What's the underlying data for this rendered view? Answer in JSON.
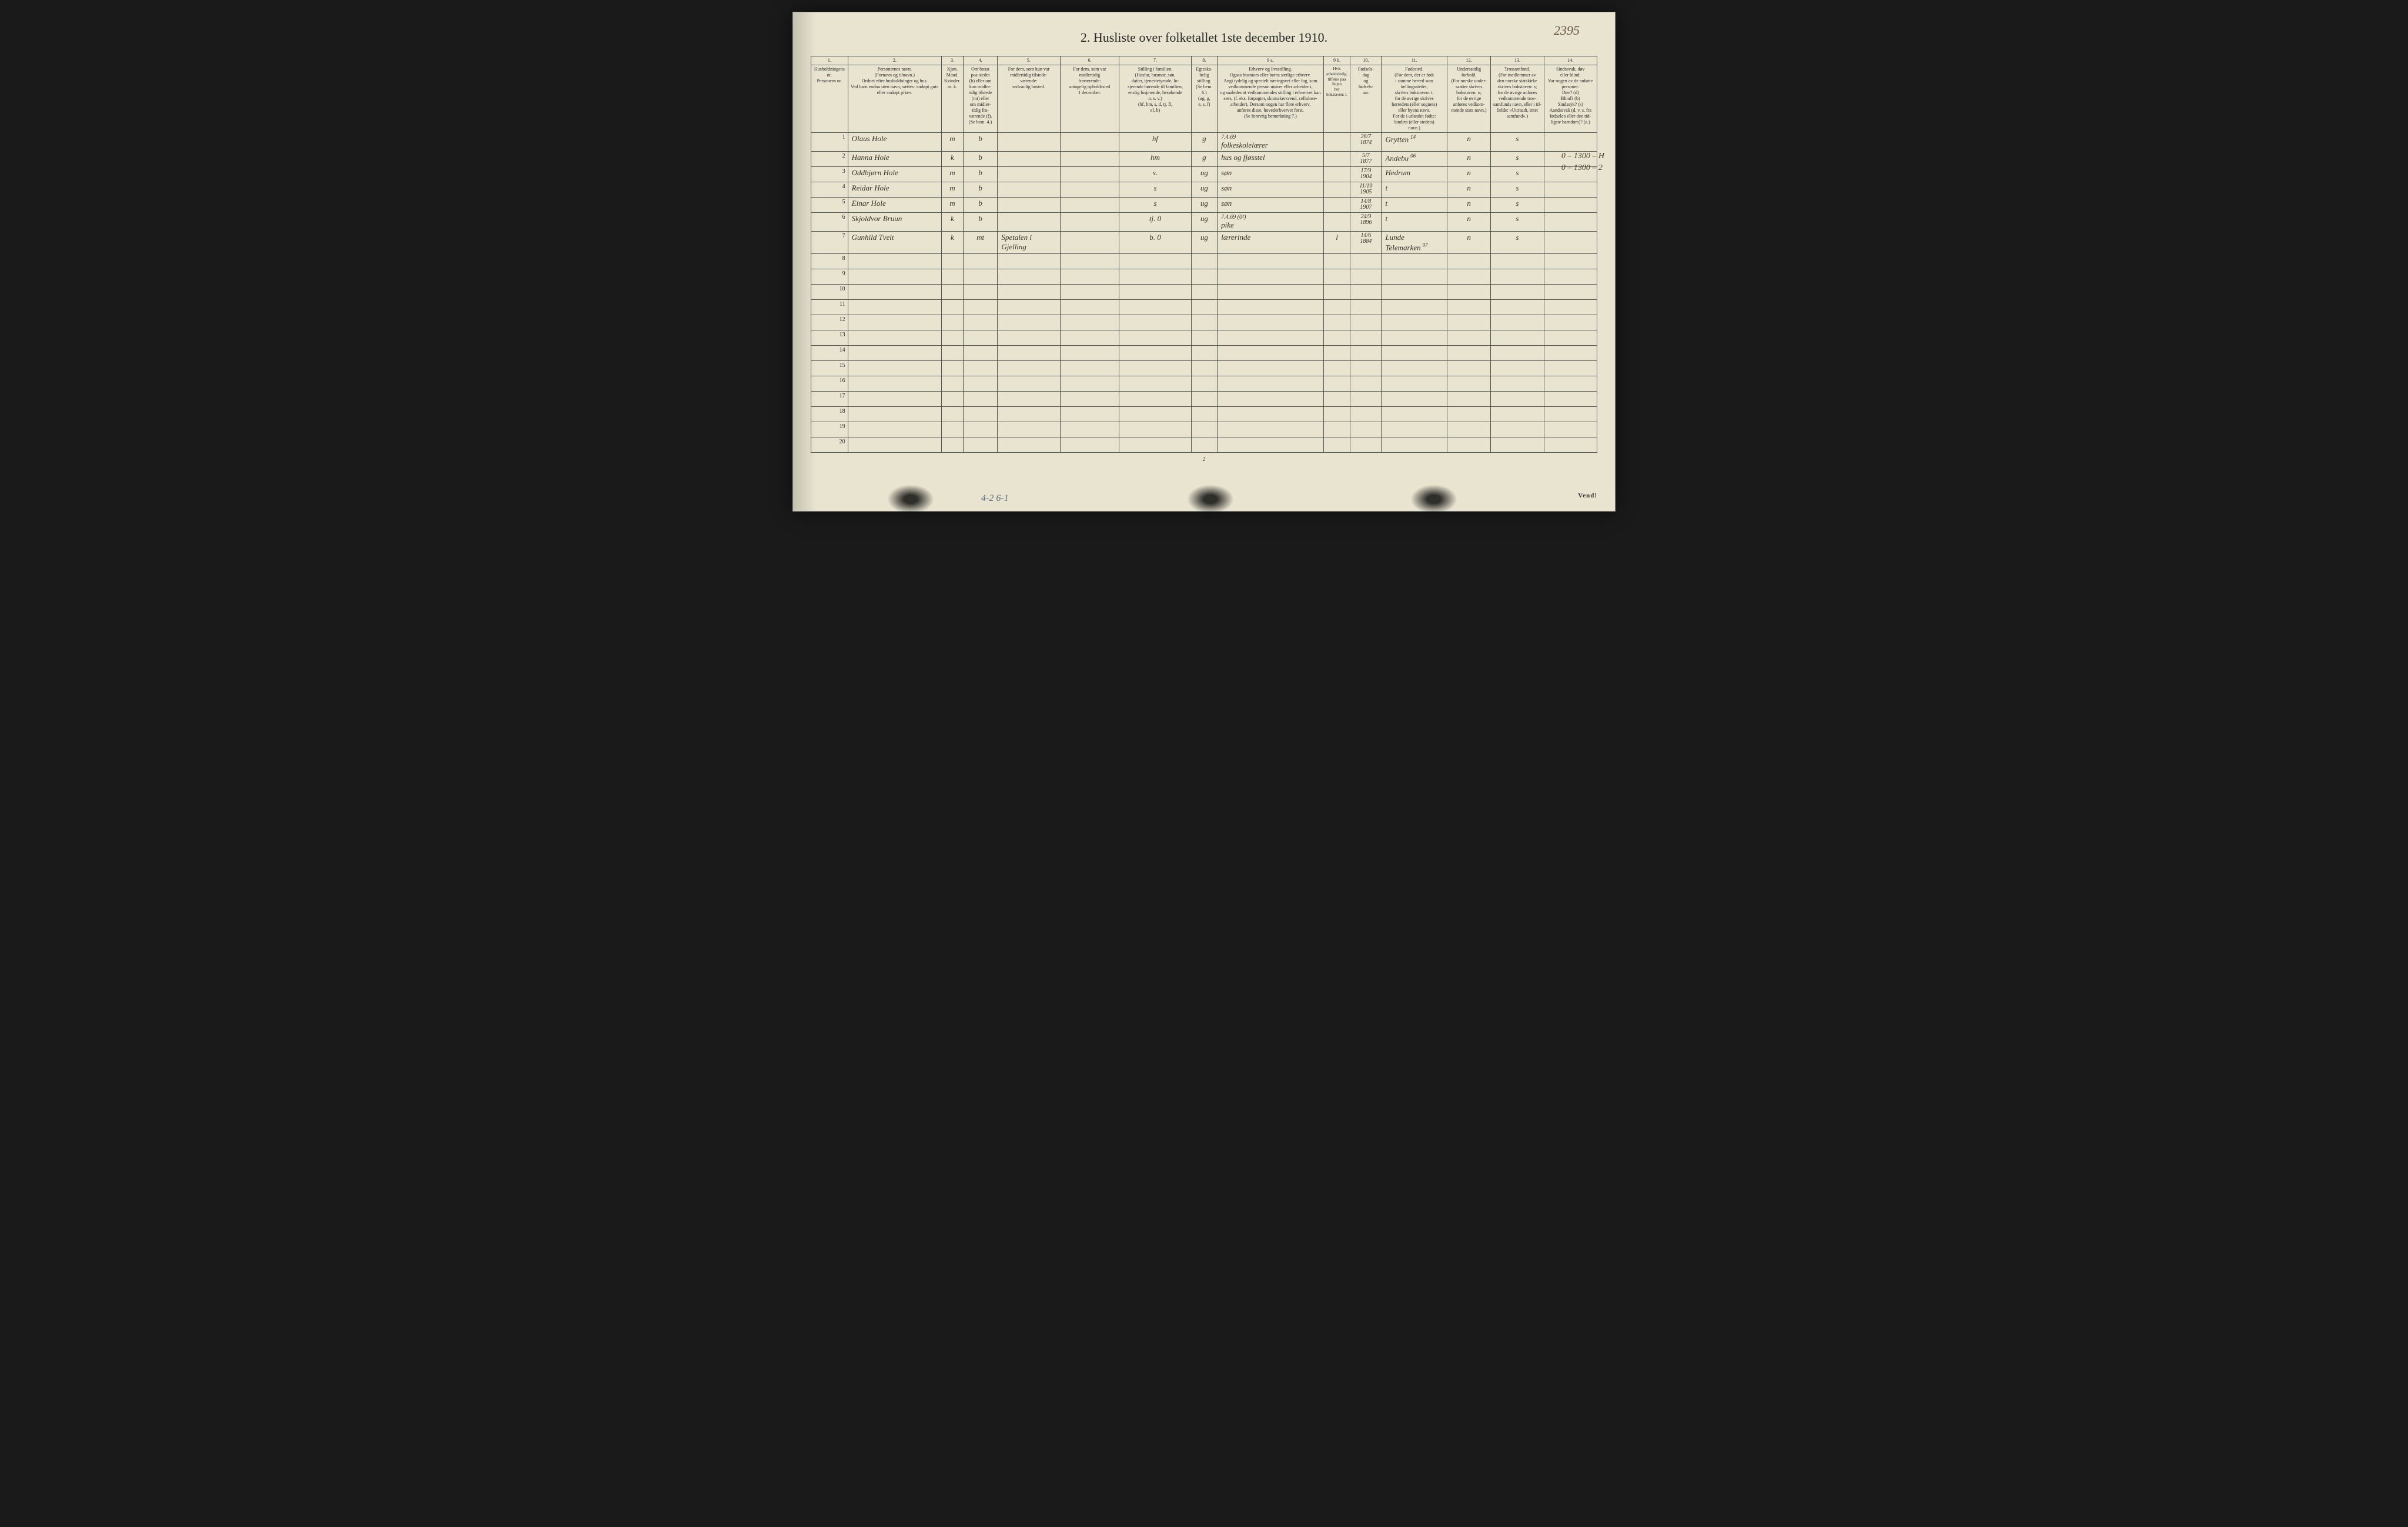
{
  "document": {
    "top_right_note": "2395",
    "title": "2.  Husliste over folketallet 1ste december 1910.",
    "page_number_bottom": "2",
    "vend_label": "Vend!",
    "bottom_pencil": "4-2   6-1"
  },
  "margin_notes": {
    "line1": "0 – 1300 – H",
    "line2": "0 – 1300 – 2"
  },
  "columns": {
    "nums": [
      "1.",
      "2.",
      "3.",
      "4.",
      "5.",
      "6.",
      "7.",
      "8.",
      "9 a.",
      "9 b.",
      "10.",
      "11.",
      "12.",
      "13.",
      "14."
    ],
    "h1": "Husholdningens nr.\nPersonens nr.",
    "h2": "Personernes navn.\n(Fornavn og tilnavn.)\nOrdnet efter husholdninger og hus.\nVed barn endnu uten navn, sættes: «udøpt gut»\neller «udøpt pike».",
    "h3": "Kjøn.\nMand.\nKvinder.\nm.  k.",
    "h4": "Om bosat\npaa stedet\n(b) eller om\nkun midler-\ntidig tilstede\n(mt) eller\nom midler-\ntidig fra-\nværende (f).\n(Se bem. 4.)",
    "h5": "For dem, som kun var\nmidlertidig tilstede-\nværende:\nsedvanlig bosted.",
    "h6": "For dem, som var\nmidlertidig\nfraværende:\nantagelig opholdssted\n1 december.",
    "h7": "Stilling i familien.\n(Husfar, husmor, søn,\ndatter, tjenestetyende, lo-\nsjerende hørende til familien,\nenslig losjerende, besøkende\no. s. v.)\n(hf, hm, s, d, tj, fl,\nel, b)",
    "h8": "Egteska-\nbelig\nstilling.\n(Se bem. 6.)\n(ug, g,\ne, s, f)",
    "h9a": "Erhverv og livsstilling.\nOgsaa husmors eller barns særlige erhverv.\nAngi tydelig og specielt næringsvei eller fag, som\nvedkommende person utøver eller arbeider i,\nog saaledes at vedkommendes stilling i erhvervet kan\nsees, (f. eks. forpagter, skomakersvend, cellulose-\narbeider). Dersom nogen har flere erhverv,\nanføres disse, hovederhvervet først.\n(Se forøvrig bemerkning 7.)",
    "h9b": "Hvis arbeidsledig,\ntilføies paa linjen\nher bokstaven: l.",
    "h10": "Fødsels-\ndag\nog\nfødsels-\naar.",
    "h11": "Fødested.\n(For dem, der er født\ni samme herred som\ntællingsstedet,\nskrives bokstaven: t;\nfor de øvrige skrives\nherredets (eller sognets)\neller byens navn.\nFor de i utlandet fødte:\nlandets (eller stedets)\nnavn.)",
    "h12": "Undersaatlig\nforhold.\n(For norske under-\nsaatter skrives\nbokstaven: n;\nfor de øvrige\nanføres vedkom-\nmende stats navn.)",
    "h13": "Trossamfund.\n(For medlemmer av\nden norske statskirke\nskrives bokstaven: s;\nfor de øvrige anføres\nvedkommende tros-\nsamfunds navn, eller i til-\nfælde: «Uttraadt, intet\nsamfund».)",
    "h14": "Sindssvak, døv\neller blind.\nVar nogen av de anførte\npersoner:\nDøv?       (d)\nBlind?     (b)\nSindssyk? (s)\nAandssvak (d. v. s. fra\nfødselen eller den tid-\nligste barndom)? (a.)"
  },
  "rows": [
    {
      "num": "1",
      "name": "Olaus Hole",
      "sex": "m",
      "res": "b",
      "c5": "",
      "c6": "",
      "fam": "hf",
      "mar": "g",
      "occ_top": "7.4.69",
      "occ": "folkeskolelærer",
      "c9b": "",
      "birth": "26/7\n1874",
      "place": "Grytten",
      "place_sup": "14",
      "nat": "n",
      "rel": "s",
      "c14": ""
    },
    {
      "num": "2",
      "name": "Hanna Hole",
      "sex": "k",
      "res": "b",
      "c5": "",
      "c6": "",
      "fam": "hm",
      "mar": "g",
      "occ_top": "",
      "occ": "hus og fjøsstel",
      "c9b": "",
      "birth": "5/7\n1877",
      "place": "Andebu",
      "place_sup": "06",
      "nat": "n",
      "rel": "s",
      "c14": ""
    },
    {
      "num": "3",
      "name": "Oddbjørn Hole",
      "sex": "m",
      "res": "b",
      "c5": "",
      "c6": "",
      "fam": "s.",
      "mar": "ug",
      "occ_top": "",
      "occ": "søn",
      "c9b": "",
      "birth": "17/9\n1904",
      "place": "Hedrum",
      "place_sup": "",
      "nat": "n",
      "rel": "s",
      "c14": ""
    },
    {
      "num": "4",
      "name": "Reidar Hole",
      "sex": "m",
      "res": "b",
      "c5": "",
      "c6": "",
      "fam": "s",
      "mar": "ug",
      "occ_top": "",
      "occ": "søn",
      "c9b": "",
      "birth": "11/10\n1905",
      "place": "t",
      "place_sup": "",
      "nat": "n",
      "rel": "s",
      "c14": ""
    },
    {
      "num": "5",
      "name": "Einar Hole",
      "sex": "m",
      "res": "b",
      "c5": "",
      "c6": "",
      "fam": "s",
      "mar": "ug",
      "occ_top": "",
      "occ": "søn",
      "c9b": "",
      "birth": "14/8\n1907",
      "place": "t",
      "place_sup": "",
      "nat": "n",
      "rel": "s",
      "c14": ""
    },
    {
      "num": "6",
      "name": "Skjoldvor Bruun",
      "sex": "k",
      "res": "b",
      "c5": "",
      "c6": "",
      "fam": "tj.  0",
      "mar": "ug",
      "occ_top": "7.4.69 (0²)",
      "occ": "pike",
      "c9b": "",
      "birth": "24/9\n1896",
      "place": "t",
      "place_sup": "",
      "nat": "n",
      "rel": "s",
      "c14": ""
    },
    {
      "num": "7",
      "name": "Gunhild Tveit",
      "sex": "k",
      "res": "mt",
      "c5": "Spetalen i Gjelling",
      "c6": "",
      "fam": "b.   0",
      "mar": "ug",
      "occ_top": "",
      "occ": "lærerinde",
      "c9b": "l",
      "birth": "14/6\n1884",
      "place": "Lunde Telemarken",
      "place_sup": "07",
      "nat": "n",
      "rel": "s",
      "c14": ""
    },
    {
      "num": "8"
    },
    {
      "num": "9"
    },
    {
      "num": "10"
    },
    {
      "num": "11"
    },
    {
      "num": "12"
    },
    {
      "num": "13"
    },
    {
      "num": "14"
    },
    {
      "num": "15"
    },
    {
      "num": "16"
    },
    {
      "num": "17"
    },
    {
      "num": "18"
    },
    {
      "num": "19"
    },
    {
      "num": "20"
    }
  ]
}
